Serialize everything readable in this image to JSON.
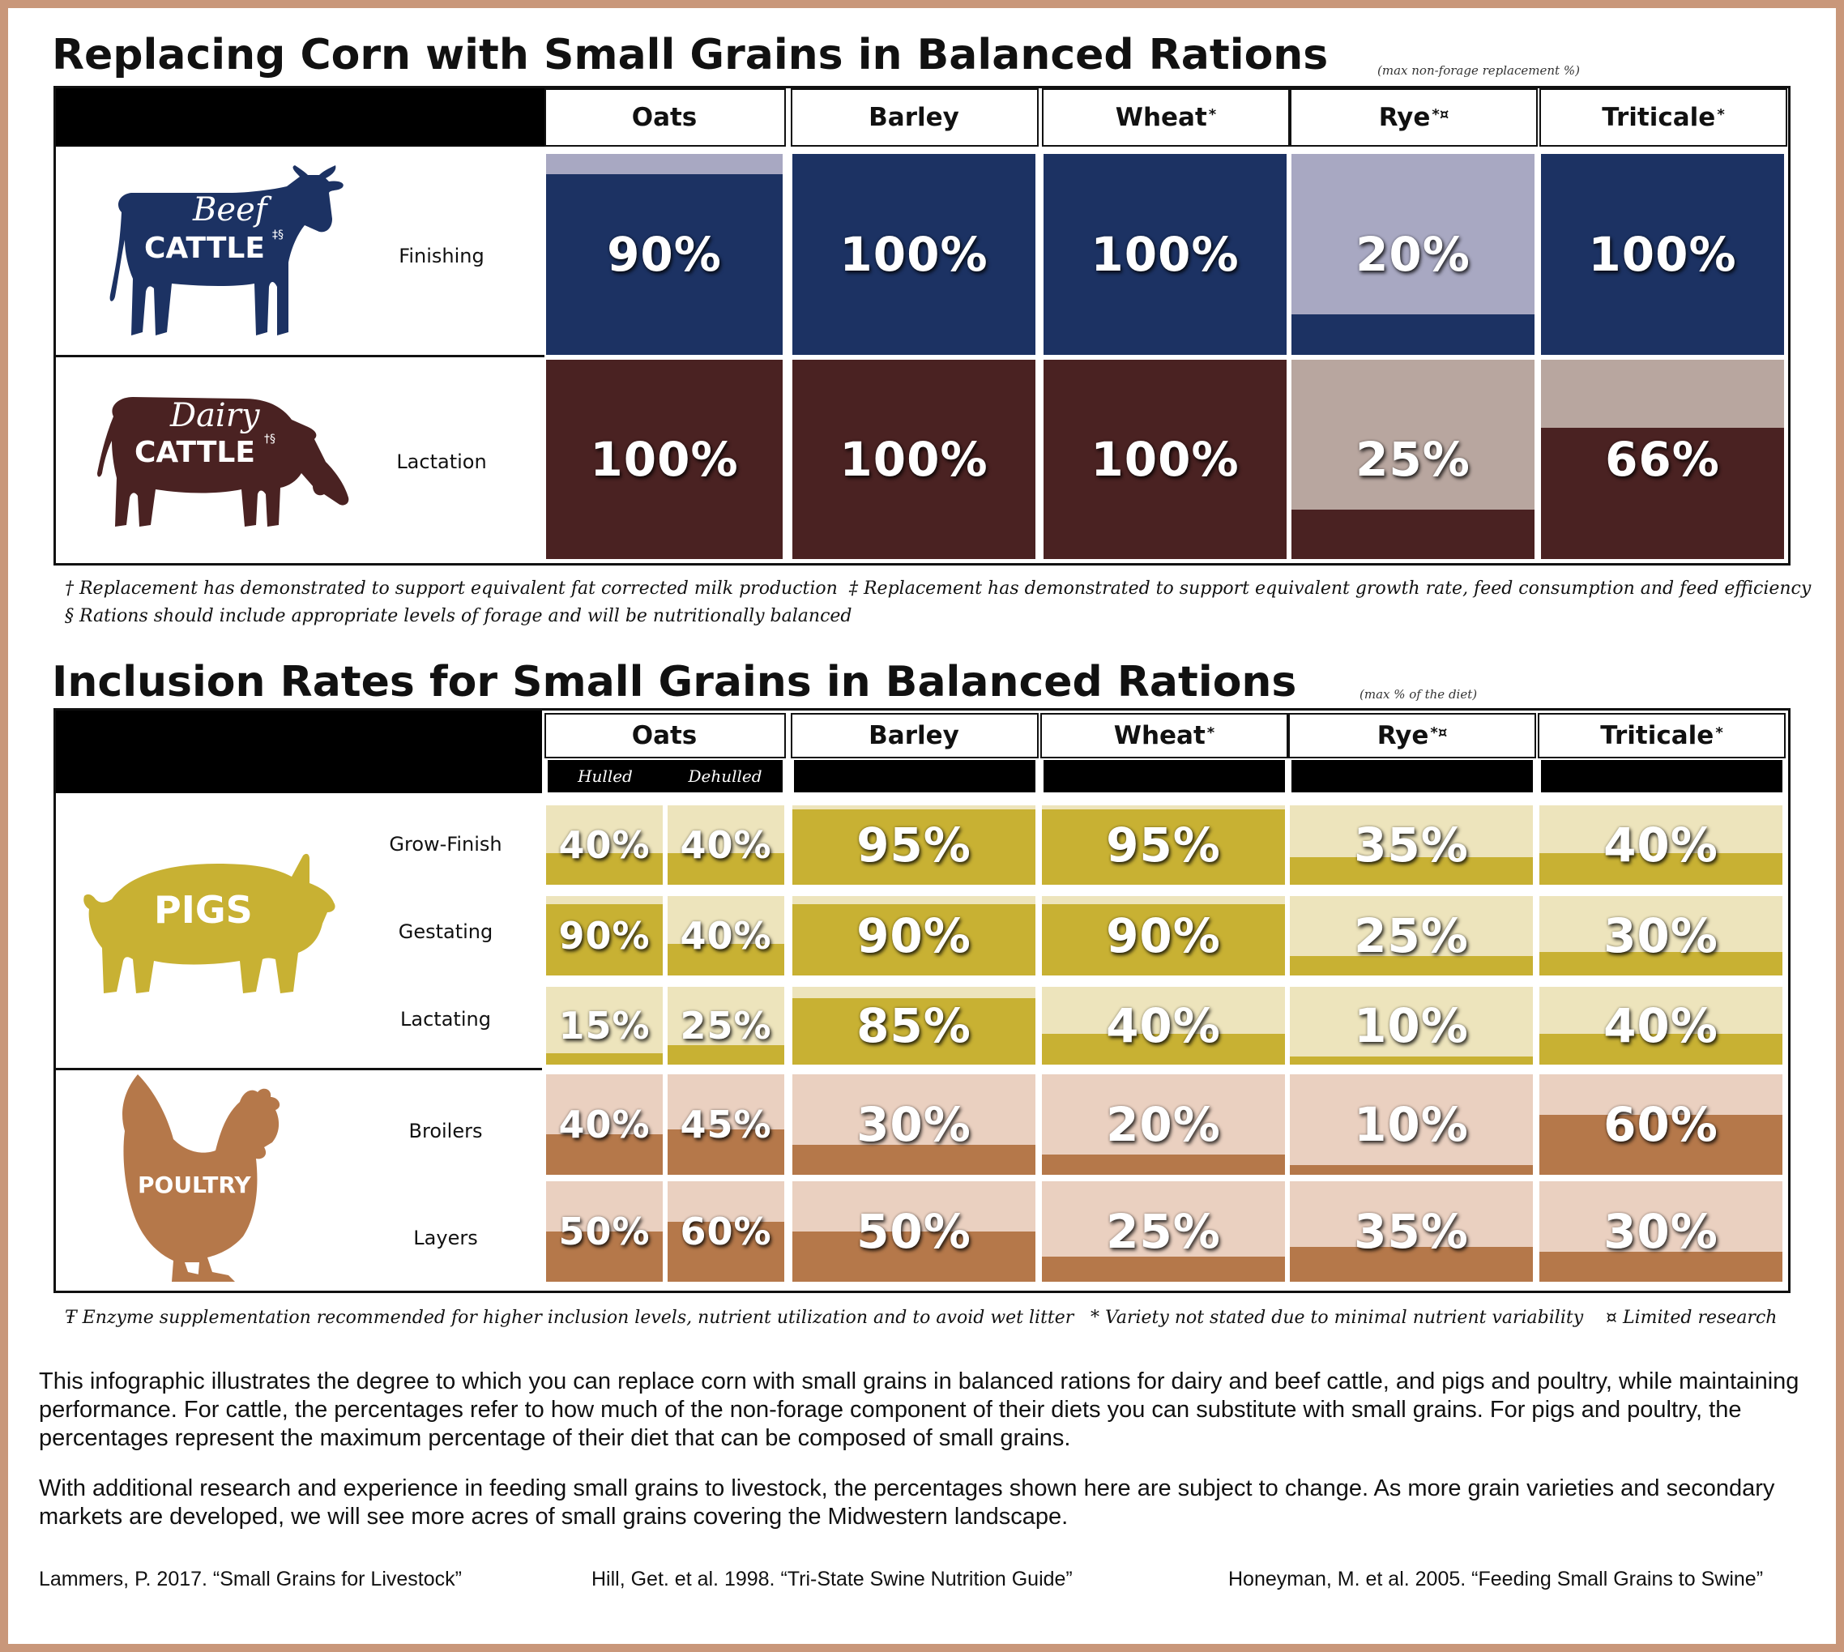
{
  "colors": {
    "beef_dark": "#1c3263",
    "beef_light": "#a8a8c2",
    "dairy_dark": "#4a2222",
    "dairy_light": "#b8a69f",
    "pig_dark": "#c8b133",
    "pig_light": "#ede4bc",
    "poultry_dark": "#b5784a",
    "poultry_light": "#ead0c0",
    "border": "#c9977a"
  },
  "section1": {
    "title": "Replacing Corn with Small Grains in Balanced Rations",
    "subtitle": "(max non-forage replacement %)"
  },
  "section2": {
    "title": "Inclusion Rates for Small Grains in Balanced Rations",
    "subtitle": "(max % of the diet)"
  },
  "columns": [
    {
      "name": "Oats",
      "mark": ""
    },
    {
      "name": "Barley",
      "mark": ""
    },
    {
      "name": "Wheat",
      "mark": "*"
    },
    {
      "name": "Rye",
      "mark": "*¤"
    },
    {
      "name": "Triticale",
      "mark": "*"
    }
  ],
  "oats_subcolumns": [
    "Hulled",
    "Dehulled"
  ],
  "animals": {
    "beef": {
      "script": "Beef",
      "word": "CATTLE",
      "mark": "‡§",
      "icon": "cow-icon"
    },
    "dairy": {
      "script": "Dairy",
      "word": "CATTLE",
      "mark": "†§",
      "icon": "dairy-cow-icon"
    },
    "pigs": {
      "word": "PIGS",
      "icon": "pig-icon"
    },
    "poultry": {
      "word": "POULTRY",
      "mark": "Ŧ",
      "icon": "chicken-icon"
    }
  },
  "footnotes1": {
    "line1a": "† Replacement has demonstrated to support equivalent fat corrected milk production",
    "line1b": "‡ Replacement has demonstrated to support equivalent growth rate, feed consumption and feed efficiency",
    "line2": "§ Rations should include appropriate levels of forage and will be nutritionally balanced"
  },
  "footnotes2": {
    "a": "Ŧ Enzyme supplementation recommended for higher inclusion levels, nutrient utilization and to avoid wet litter",
    "b": "* Variety not stated due to minimal nutrient variability",
    "c": "¤ Limited research"
  },
  "paragraphs": {
    "p1": "This infographic illustrates the degree to which you can replace corn with small grains in balanced rations for dairy and beef  cattle, and pigs and poultry, while maintaining performance. For cattle, the percentages refer to how much of the non-forage component of their diets you can substitute with small grains. For pigs and poultry, the percentages represent the maximum percentage of their diet that can be composed of small grains.",
    "p2": "With additional research and experience in feeding small grains to livestock, the percentages shown here are subject to change. As more grain varieties and secondary markets are developed, we will see more acres of small grains covering the Midwestern landscape."
  },
  "sources": [
    "Lammers, P. 2017. “Small Grains for Livestock”",
    "Hill, Get. et al. 1998. “Tri-State Swine Nutrition Guide”",
    "Honeyman, M. et al. 2005. “Feeding Small Grains to Swine”"
  ],
  "chart_data": [
    {
      "type": "table",
      "title": "Replacing Corn with Small Grains in Balanced Rations",
      "subtitle": "(max non-forage replacement %)",
      "columns": [
        "Oats",
        "Barley",
        "Wheat",
        "Rye",
        "Triticale"
      ],
      "rows": [
        {
          "group": "Beef Cattle",
          "label": "Finishing",
          "values": [
            90,
            100,
            100,
            20,
            100
          ],
          "display": [
            "90%",
            "100%",
            "100%",
            "20%",
            "100%"
          ]
        },
        {
          "group": "Dairy Cattle",
          "label": "Lactation",
          "values": [
            100,
            100,
            100,
            25,
            66
          ],
          "display": [
            "100%",
            "100%",
            "100%",
            "25%",
            "66%"
          ]
        }
      ]
    },
    {
      "type": "table",
      "title": "Inclusion Rates for Small Grains in Balanced Rations",
      "subtitle": "(max % of the diet)",
      "columns": [
        "Oats Hulled",
        "Oats Dehulled",
        "Barley",
        "Wheat",
        "Rye",
        "Triticale"
      ],
      "rows": [
        {
          "group": "Pigs",
          "label": "Grow-Finish",
          "values": [
            40,
            40,
            95,
            95,
            35,
            40
          ],
          "display": [
            "40%",
            "40%",
            "95%",
            "95%",
            "35%",
            "40%"
          ]
        },
        {
          "group": "Pigs",
          "label": "Gestating",
          "values": [
            90,
            40,
            90,
            90,
            25,
            30
          ],
          "display": [
            "90%",
            "40%",
            "90%",
            "90%",
            "25%",
            "30%"
          ]
        },
        {
          "group": "Pigs",
          "label": "Lactating",
          "values": [
            15,
            25,
            85,
            40,
            10,
            40
          ],
          "display": [
            "15%",
            "25%",
            "85%",
            "40%",
            "10%",
            "40%"
          ]
        },
        {
          "group": "Poultry",
          "label": "Broilers",
          "values": [
            40,
            45,
            30,
            20,
            10,
            60
          ],
          "display": [
            "40%",
            "45%",
            "30%",
            "20%",
            "10%",
            "60%"
          ]
        },
        {
          "group": "Poultry",
          "label": "Layers",
          "values": [
            50,
            60,
            50,
            25,
            35,
            30
          ],
          "display": [
            "50%",
            "60%",
            "50%",
            "25%",
            "35%",
            "30%"
          ]
        }
      ]
    }
  ]
}
